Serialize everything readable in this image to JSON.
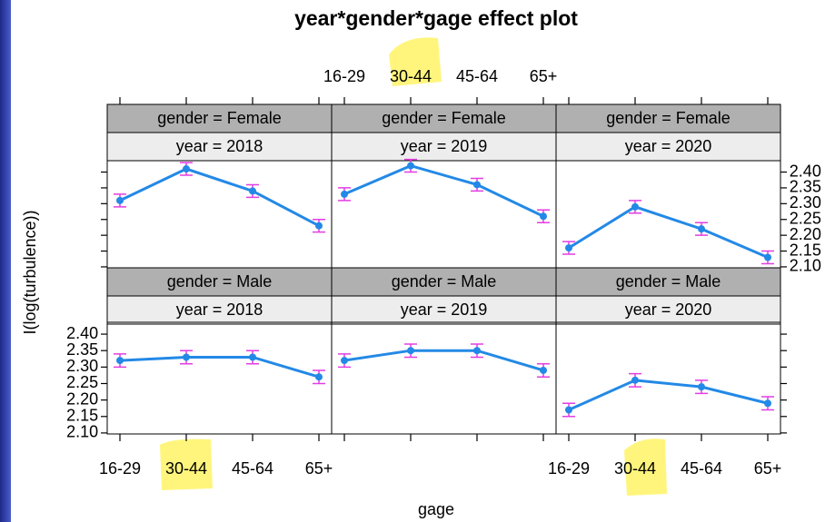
{
  "chart_data": {
    "type": "line",
    "title": "year*gender*gage effect plot",
    "x_label": "gage",
    "y_label": "I(log(turbulence))",
    "categories": [
      "16-29",
      "30-44",
      "45-64",
      "65+"
    ],
    "ylim": [
      2.097,
      2.436
    ],
    "yticks": [
      {
        "value": 2.1,
        "label": "2.10"
      },
      2.15,
      {
        "value": 2.2,
        "label": "2.20"
      },
      2.25,
      {
        "value": 2.3,
        "label": "2.30"
      },
      2.35,
      {
        "value": 2.4,
        "label": "2.40"
      }
    ],
    "line_color": "#2389e6",
    "error_color": "#e23ee2",
    "panels": [
      {
        "gender_strip": "gender = Female",
        "year_strip": "year = 2018",
        "values": [
          2.31,
          2.41,
          2.34,
          2.23
        ],
        "errors": [
          0.02,
          0.02,
          0.02,
          0.02
        ]
      },
      {
        "gender_strip": "gender = Female",
        "year_strip": "year = 2019",
        "values": [
          2.33,
          2.42,
          2.36,
          2.26
        ],
        "errors": [
          0.02,
          0.02,
          0.02,
          0.02
        ]
      },
      {
        "gender_strip": "gender = Female",
        "year_strip": "year = 2020",
        "values": [
          2.16,
          2.29,
          2.22,
          2.13
        ],
        "errors": [
          0.02,
          0.02,
          0.02,
          0.02
        ]
      },
      {
        "gender_strip": "gender = Male",
        "year_strip": "year = 2018",
        "values": [
          2.32,
          2.33,
          2.33,
          2.27
        ],
        "errors": [
          0.02,
          0.02,
          0.02,
          0.02
        ]
      },
      {
        "gender_strip": "gender = Male",
        "year_strip": "year = 2019",
        "values": [
          2.32,
          2.35,
          2.35,
          2.29
        ],
        "errors": [
          0.02,
          0.02,
          0.02,
          0.02
        ]
      },
      {
        "gender_strip": "gender = Male",
        "year_strip": "year = 2020",
        "values": [
          2.17,
          2.26,
          2.24,
          2.19
        ],
        "errors": [
          0.02,
          0.02,
          0.02,
          0.02
        ]
      }
    ]
  }
}
